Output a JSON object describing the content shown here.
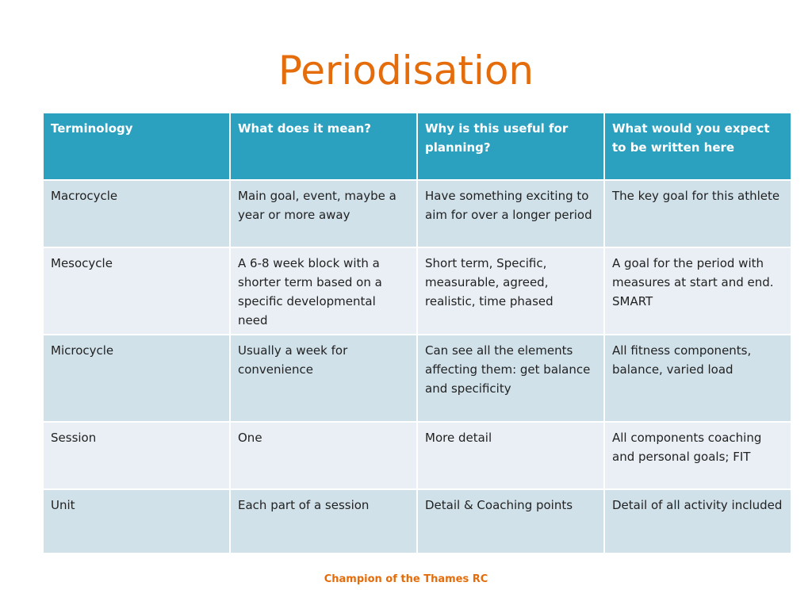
{
  "title": "Periodisation",
  "table": {
    "headers": [
      "Terminology",
      "What does it mean?",
      "Why is this useful for planning?",
      "What would you expect to be written here"
    ],
    "rows": [
      [
        "Macrocycle",
        "Main goal, event, maybe a year or more away",
        "Have something exciting to aim for over a longer period",
        "The key goal for this athlete"
      ],
      [
        "Mesocycle",
        "A 6-8 week block  with a shorter term based on a specific developmental need",
        "Short term, Specific, measurable, agreed, realistic, time phased",
        "A goal for the period with measures at start and end. SMART"
      ],
      [
        "Microcycle",
        "Usually a week for convenience",
        "Can see all the elements affecting them: get balance and specificity",
        "All fitness components, balance, varied load"
      ],
      [
        "Session",
        "One",
        "More detail",
        "All components coaching and personal goals; FIT"
      ],
      [
        "Unit",
        "Each part of a session",
        " Detail  & Coaching points",
        "Detail of all activity included"
      ]
    ]
  },
  "footer": "Champion of the Thames RC",
  "colors": {
    "title": "#e46c0a",
    "header_bg": "#2ca1bf",
    "row_dark": "#d0e1ea",
    "row_light": "#e9eff4"
  }
}
